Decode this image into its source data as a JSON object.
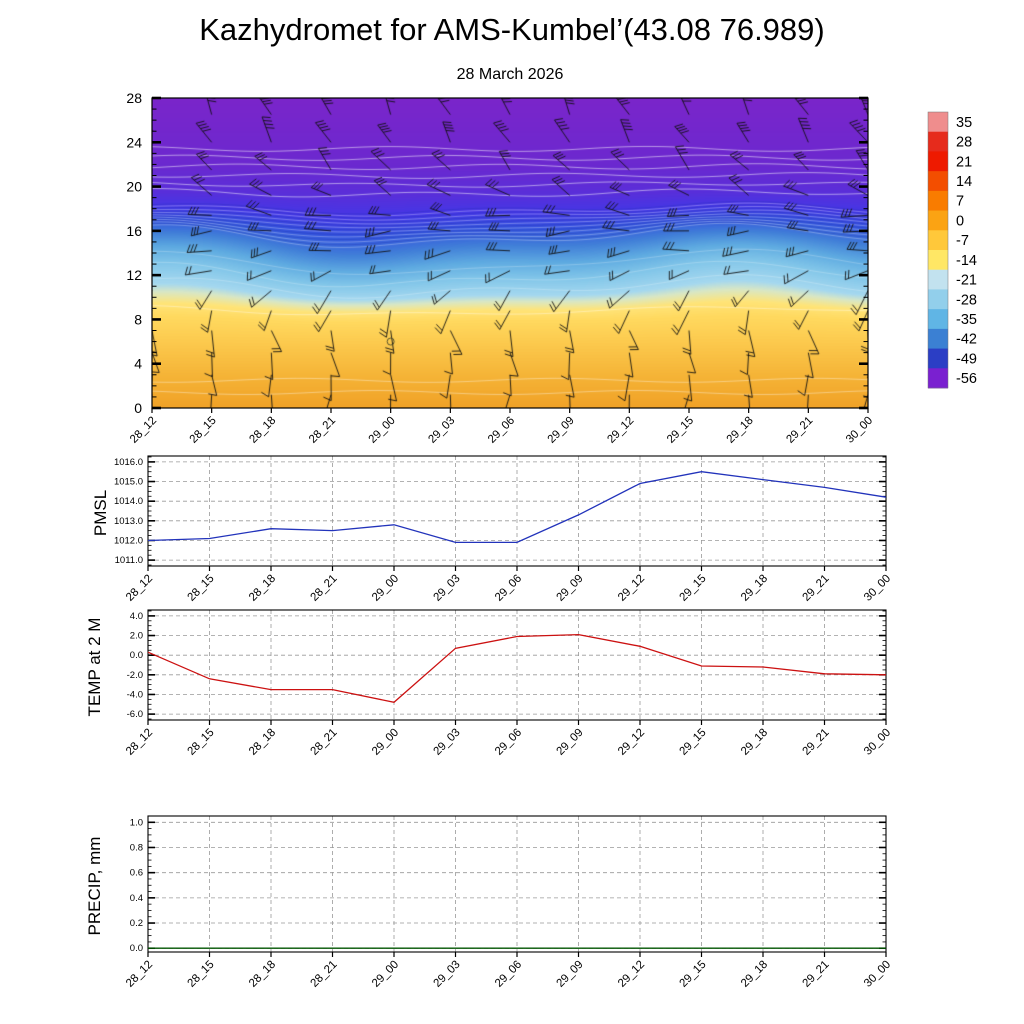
{
  "title": "Kazhydromet for AMS-Kumbel’(43.08 76.989)",
  "time_labels": [
    "28_12",
    "28_15",
    "28_18",
    "28_21",
    "29_00",
    "29_03",
    "29_06",
    "29_09",
    "29_12",
    "29_15",
    "29_18",
    "29_21",
    "30_00"
  ],
  "chart_data": [
    {
      "type": "heatmap",
      "name": "temperature-height-cross-section",
      "title": "28 March 2026",
      "ylim": [
        0,
        28
      ],
      "y_ticks": [
        0,
        4,
        8,
        12,
        16,
        20,
        24,
        28
      ],
      "x_tick_labels_from": "time_labels",
      "field_profile_stops": [
        {
          "h": 0,
          "color": "#f0a126"
        },
        {
          "h": 3,
          "color": "#f5b437"
        },
        {
          "h": 6,
          "color": "#fcca4e"
        },
        {
          "h": 8,
          "color": "#ffd95f"
        },
        {
          "h": 9,
          "color": "#ffe478"
        },
        {
          "h": 9.8,
          "color": "#d9e7c4"
        },
        {
          "h": 10.4,
          "color": "#a5d8ef"
        },
        {
          "h": 12,
          "color": "#82c6e9"
        },
        {
          "h": 13.5,
          "color": "#5fabe1"
        },
        {
          "h": 15,
          "color": "#417fd8"
        },
        {
          "h": 16.5,
          "color": "#3353dd"
        },
        {
          "h": 17.8,
          "color": "#4437e6"
        },
        {
          "h": 19.5,
          "color": "#5a2ed9"
        },
        {
          "h": 22,
          "color": "#6b28cf"
        },
        {
          "h": 28,
          "color": "#7a25ca"
        }
      ],
      "wind_barb_rows": [
        {
          "h": 1.2,
          "angle": 185,
          "ticks": 1
        },
        {
          "h": 3.0,
          "angle": 178,
          "ticks": 1
        },
        {
          "h": 5.0,
          "angle": 172,
          "ticks": 1
        },
        {
          "h": 7.0,
          "angle": 166,
          "ticks": 2
        },
        {
          "h": 8.8,
          "angle": 200,
          "ticks": 2
        },
        {
          "h": 10.6,
          "angle": 218,
          "ticks": 2
        },
        {
          "h": 12.4,
          "angle": 250,
          "ticks": 2
        },
        {
          "h": 14.2,
          "angle": 262,
          "ticks": 3
        },
        {
          "h": 16.0,
          "angle": 268,
          "ticks": 3
        },
        {
          "h": 17.4,
          "angle": 278,
          "ticks": 3
        },
        {
          "h": 19.2,
          "angle": 300,
          "ticks": 3
        },
        {
          "h": 21.5,
          "angle": 318,
          "ticks": 3
        },
        {
          "h": 24.0,
          "angle": 328,
          "ticks": 4
        },
        {
          "h": 26.5,
          "angle": 333,
          "ticks": 4
        }
      ],
      "marker_circle": {
        "x_index": 4,
        "h": 6
      },
      "colorbar": {
        "labels": [
          "35",
          "28",
          "21",
          "14",
          "7",
          "0",
          "-7",
          "-14",
          "-21",
          "-28",
          "-35",
          "-42",
          "-49",
          "-56"
        ],
        "colors": [
          "#ef8d8d",
          "#e62b1c",
          "#ee1a00",
          "#f34e00",
          "#f97c00",
          "#fba313",
          "#ffc83a",
          "#ffe765",
          "#c2e2ef",
          "#92cfeb",
          "#60b5e5",
          "#3b80d3",
          "#2b3ec5",
          "#7a20d0"
        ]
      }
    },
    {
      "type": "line",
      "ylabel": "PMSL",
      "line_color": "#2233bb",
      "ylim": [
        1010.7,
        1016.3
      ],
      "y_ticks": [
        1011.0,
        1012.0,
        1013.0,
        1014.0,
        1015.0,
        1016.0
      ],
      "tick_decimals": 1,
      "values": [
        1012.0,
        1012.1,
        1012.6,
        1012.5,
        1012.8,
        1011.9,
        1011.9,
        1013.3,
        1014.9,
        1015.5,
        1015.1,
        1014.7,
        1014.2
      ]
    },
    {
      "type": "line",
      "ylabel": "TEMP at 2 M",
      "line_color": "#cc1111",
      "ylim": [
        -6.6,
        4.6
      ],
      "y_ticks": [
        -6.0,
        -4.0,
        -2.0,
        0.0,
        2.0,
        4.0
      ],
      "tick_decimals": 1,
      "values": [
        0.3,
        -2.4,
        -3.5,
        -3.5,
        -4.8,
        0.7,
        1.9,
        2.1,
        0.9,
        -1.1,
        -1.2,
        -1.9,
        -2.0
      ]
    },
    {
      "type": "line",
      "ylabel": "PRECIP, mm",
      "line_color": "#005500",
      "ylim": [
        -0.03,
        1.05
      ],
      "y_ticks": [
        0.0,
        0.2,
        0.4,
        0.6,
        0.8,
        1.0
      ],
      "tick_decimals": 1,
      "values": [
        0,
        0,
        0,
        0,
        0,
        0,
        0,
        0,
        0,
        0,
        0,
        0,
        0
      ]
    }
  ]
}
